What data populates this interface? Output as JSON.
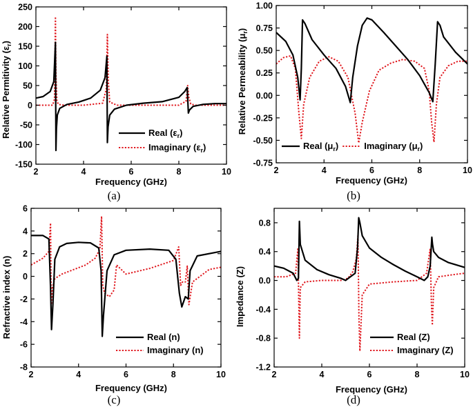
{
  "colors": {
    "real": "#000000",
    "imaginary": "#e0191f"
  },
  "chart_data": [
    {
      "id": "a",
      "type": "line",
      "caption": "(a)",
      "xlabel": "Frequency (GHz)",
      "ylabel": "Relative Permitivity (ε",
      "ylabel_sub": "r",
      "ylabel_close": ")",
      "xlim": [
        2,
        10
      ],
      "ylim": [
        -150,
        250
      ],
      "xticks": [
        2,
        4,
        6,
        8,
        10
      ],
      "yticks": [
        -150,
        -100,
        -50,
        0,
        50,
        100,
        150,
        200,
        250
      ],
      "legend_position": "bottom-right",
      "series": [
        {
          "name": "Real",
          "legend": "Real (ε",
          "sub": "r",
          "close": ")",
          "style": "solid",
          "x": [
            2,
            2.3,
            2.6,
            2.75,
            2.82,
            2.84,
            2.86,
            2.9,
            3.0,
            3.3,
            3.8,
            4.3,
            4.7,
            4.9,
            4.98,
            5.0,
            5.03,
            5.1,
            5.3,
            5.8,
            6.5,
            7.3,
            8.0,
            8.25,
            8.35,
            8.4,
            8.45,
            8.6,
            9.0,
            9.5,
            10
          ],
          "y": [
            18,
            22,
            35,
            60,
            160,
            -115,
            -60,
            -25,
            -8,
            2,
            8,
            18,
            38,
            70,
            125,
            -95,
            -55,
            -25,
            -10,
            0,
            5,
            9,
            20,
            35,
            45,
            -20,
            -12,
            -3,
            2,
            4,
            4
          ]
        },
        {
          "name": "Imaginary",
          "legend": "Imaginary (ε",
          "sub": "r",
          "close": ")",
          "style": "dotted",
          "x": [
            2,
            2.7,
            2.78,
            2.82,
            2.84,
            2.88,
            2.95,
            3.2,
            4.0,
            4.8,
            4.95,
            5.0,
            5.04,
            5.1,
            5.4,
            6.0,
            8.0,
            8.3,
            8.37,
            8.42,
            8.5,
            8.7,
            10
          ],
          "y": [
            0,
            0,
            15,
            225,
            80,
            10,
            2,
            0,
            0,
            5,
            40,
            180,
            60,
            8,
            0,
            0,
            0,
            10,
            50,
            20,
            3,
            0,
            0
          ]
        }
      ]
    },
    {
      "id": "b",
      "type": "line",
      "caption": "(b)",
      "xlabel": "Frequency (GHz)",
      "ylabel": "Relative Permeability (μ",
      "ylabel_sub": "r",
      "ylabel_close": ")",
      "xlim": [
        2,
        10
      ],
      "ylim": [
        -0.75,
        1.0
      ],
      "xticks": [
        2,
        4,
        6,
        8,
        10
      ],
      "yticks": [
        -0.75,
        -0.5,
        -0.25,
        0.0,
        0.25,
        0.5,
        0.75,
        1.0
      ],
      "ytick_labels": [
        "-0.75",
        "-0.50",
        "-0.25",
        "0.00",
        "0.25",
        "0.50",
        "0.75",
        "1.00"
      ],
      "legend_position": "bottom",
      "series": [
        {
          "name": "Real",
          "legend": "Real (μ",
          "sub": "r",
          "close": ")",
          "style": "solid",
          "x": [
            2,
            2.4,
            2.7,
            2.9,
            3.0,
            3.05,
            3.1,
            3.2,
            3.5,
            4.0,
            4.5,
            4.9,
            5.1,
            5.2,
            5.4,
            5.6,
            5.8,
            6.0,
            6.5,
            7.0,
            7.5,
            8.0,
            8.4,
            8.55,
            8.65,
            8.75,
            8.85,
            9.0,
            9.5,
            10
          ],
          "y": [
            0.7,
            0.6,
            0.45,
            0.2,
            -0.05,
            0.3,
            0.84,
            0.8,
            0.62,
            0.45,
            0.3,
            0.1,
            -0.08,
            0.2,
            0.55,
            0.78,
            0.86,
            0.84,
            0.7,
            0.55,
            0.4,
            0.22,
            0.03,
            -0.07,
            0.35,
            0.82,
            0.78,
            0.65,
            0.48,
            0.35
          ]
        },
        {
          "name": "Imaginary",
          "legend": "Imaginary (μ",
          "sub": "r",
          "close": ")",
          "style": "dotted",
          "x": [
            2,
            2.3,
            2.6,
            2.8,
            2.95,
            3.05,
            3.15,
            3.4,
            3.8,
            4.2,
            4.6,
            5.0,
            5.3,
            5.45,
            5.6,
            5.9,
            6.3,
            6.8,
            7.3,
            7.8,
            8.2,
            8.4,
            8.5,
            8.6,
            8.7,
            8.85,
            9.2,
            9.6,
            10
          ],
          "y": [
            0.35,
            0.42,
            0.44,
            0.3,
            -0.2,
            -0.48,
            -0.1,
            0.2,
            0.38,
            0.43,
            0.38,
            0.2,
            -0.2,
            -0.53,
            -0.3,
            0.05,
            0.28,
            0.36,
            0.4,
            0.38,
            0.3,
            0.05,
            -0.3,
            -0.52,
            -0.1,
            0.2,
            0.33,
            0.38,
            0.38
          ]
        }
      ]
    },
    {
      "id": "c",
      "type": "line",
      "caption": "(c)",
      "xlabel": "Frequency (GHz)",
      "ylabel": "Refractive index (n)",
      "xlim": [
        2,
        10
      ],
      "ylim": [
        -8,
        6
      ],
      "xticks": [
        2,
        4,
        6,
        8,
        10
      ],
      "yticks": [
        -8,
        -6,
        -4,
        -2,
        0,
        2,
        4,
        6
      ],
      "legend_position": "bottom-right",
      "series": [
        {
          "name": "Real",
          "legend": "Real (n)",
          "style": "solid",
          "x": [
            2,
            2.5,
            2.75,
            2.82,
            2.86,
            2.92,
            3.0,
            3.2,
            3.5,
            4.0,
            4.5,
            4.85,
            4.95,
            5.0,
            5.05,
            5.2,
            5.5,
            6.0,
            7.0,
            7.8,
            8.1,
            8.25,
            8.35,
            8.5,
            8.62,
            8.7,
            9.0,
            10
          ],
          "y": [
            3.6,
            3.6,
            3.3,
            -1.0,
            -4.7,
            -2.5,
            1.5,
            2.6,
            2.9,
            3.0,
            2.95,
            2.5,
            0.5,
            -5.3,
            -3.5,
            0.5,
            1.9,
            2.3,
            2.4,
            2.3,
            1.5,
            -1.5,
            -2.7,
            -1.8,
            -2.0,
            0.5,
            1.8,
            2.2
          ]
        },
        {
          "name": "Imaginary",
          "legend": "Imaginary (n)",
          "style": "dotted",
          "x": [
            2,
            2.5,
            2.75,
            2.82,
            2.85,
            2.9,
            3.0,
            3.3,
            3.8,
            4.3,
            4.7,
            4.9,
            4.97,
            5.02,
            5.1,
            5.3,
            5.5,
            5.6,
            6.0,
            7.0,
            8.0,
            8.22,
            8.3,
            8.38,
            8.5,
            8.58,
            8.65,
            8.8,
            9.5,
            10
          ],
          "y": [
            1.0,
            1.6,
            2.2,
            4.7,
            -2.5,
            -1.0,
            -0.2,
            0.2,
            0.6,
            1.0,
            1.6,
            2.4,
            5.3,
            -0.8,
            -1.5,
            -1.8,
            -1.2,
            1.0,
            0.2,
            0.7,
            1.4,
            2.6,
            -0.8,
            -0.5,
            -0.5,
            0.9,
            -2.5,
            -0.5,
            0.6,
            0.8
          ]
        }
      ]
    },
    {
      "id": "d",
      "type": "line",
      "caption": "(d)",
      "xlabel": "Frequency (GHz)",
      "ylabel": "Impedance (Z)",
      "xlim": [
        2,
        10
      ],
      "ylim": [
        -1.2,
        1.0
      ],
      "xticks": [
        2,
        4,
        6,
        8,
        10
      ],
      "yticks": [
        -1.2,
        -0.8,
        -0.4,
        0.0,
        0.4,
        0.8
      ],
      "ytick_labels": [
        "-1.2",
        "-0.8",
        "-0.4",
        "0.0",
        "0.4",
        "0.8"
      ],
      "legend_position": "bottom-right",
      "series": [
        {
          "name": "Real",
          "legend": "Real (Z)",
          "style": "solid",
          "x": [
            2,
            2.4,
            2.8,
            2.95,
            3.02,
            3.06,
            3.1,
            3.3,
            3.8,
            4.3,
            4.8,
            5.0,
            5.2,
            5.4,
            5.5,
            5.55,
            5.6,
            5.7,
            6.0,
            6.5,
            7.0,
            7.5,
            8.0,
            8.3,
            8.45,
            8.55,
            8.62,
            8.65,
            8.7,
            8.9,
            9.3,
            10
          ],
          "y": [
            0.2,
            0.17,
            0.1,
            0.0,
            0.03,
            0.82,
            0.5,
            0.28,
            0.15,
            0.08,
            0.03,
            0.0,
            0.05,
            0.1,
            0.45,
            0.87,
            0.8,
            0.62,
            0.45,
            0.32,
            0.22,
            0.13,
            0.05,
            0.0,
            0.05,
            0.2,
            0.6,
            0.5,
            0.4,
            0.32,
            0.25,
            0.18
          ]
        },
        {
          "name": "Imaginary",
          "legend": "Imaginary (Z)",
          "style": "dotted",
          "x": [
            2,
            2.5,
            2.9,
            3.0,
            3.03,
            3.06,
            3.1,
            3.3,
            4.0,
            4.8,
            5.1,
            5.3,
            5.45,
            5.52,
            5.56,
            5.6,
            5.7,
            6.0,
            7.0,
            8.0,
            8.4,
            8.55,
            8.6,
            8.64,
            8.7,
            8.9,
            9.5,
            10
          ],
          "y": [
            0.05,
            0.05,
            0.1,
            0.45,
            -0.2,
            -0.8,
            -0.1,
            -0.02,
            0.0,
            0.0,
            0.03,
            0.12,
            0.3,
            0.63,
            -0.5,
            -0.98,
            -0.2,
            -0.05,
            -0.02,
            0.0,
            0.1,
            0.44,
            -0.3,
            -0.62,
            -0.1,
            0.05,
            0.08,
            0.1
          ]
        }
      ]
    }
  ]
}
